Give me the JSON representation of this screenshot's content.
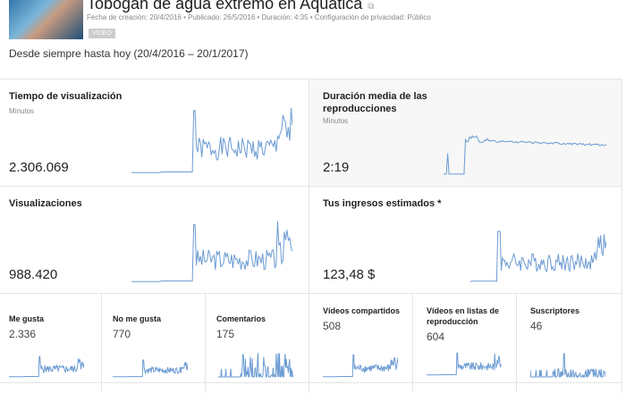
{
  "video": {
    "title": "Tobogán de agua extremo en Aquática",
    "meta": "Fecha de creación: 20/4/2016  •  Publicado: 26/5/2016  •  Duración: 4:35  •  Configuración de privacidad: Público",
    "badge": "VÍDEO",
    "external_icon": "external-link-icon"
  },
  "range": "Desde siempre hasta hoy (20/4/2016 – 20/1/2017)",
  "accent": "#6b9bd2",
  "cards": {
    "watch_time": {
      "label": "Tiempo de visualización",
      "unit": "Minutos",
      "value": "2.306.069"
    },
    "avg_duration": {
      "label": "Duración media de las reproducciones",
      "unit": "Minutos",
      "value": "2:19"
    },
    "views": {
      "label": "Visualizaciones",
      "value": "988.420"
    },
    "revenue": {
      "label": "Tus ingresos estimados *",
      "value": "123,48 $"
    },
    "likes": {
      "label": "Me gusta",
      "value": "2.336"
    },
    "dislikes": {
      "label": "No me gusta",
      "value": "770"
    },
    "comments": {
      "label": "Comentarios",
      "value": "175"
    },
    "shares": {
      "label": "Vídeos compartidos",
      "value": "508"
    },
    "playlists": {
      "label": "Vídeos en listas de reproducción",
      "value": "604"
    },
    "subscribers": {
      "label": "Suscriptores",
      "value": "46"
    }
  }
}
